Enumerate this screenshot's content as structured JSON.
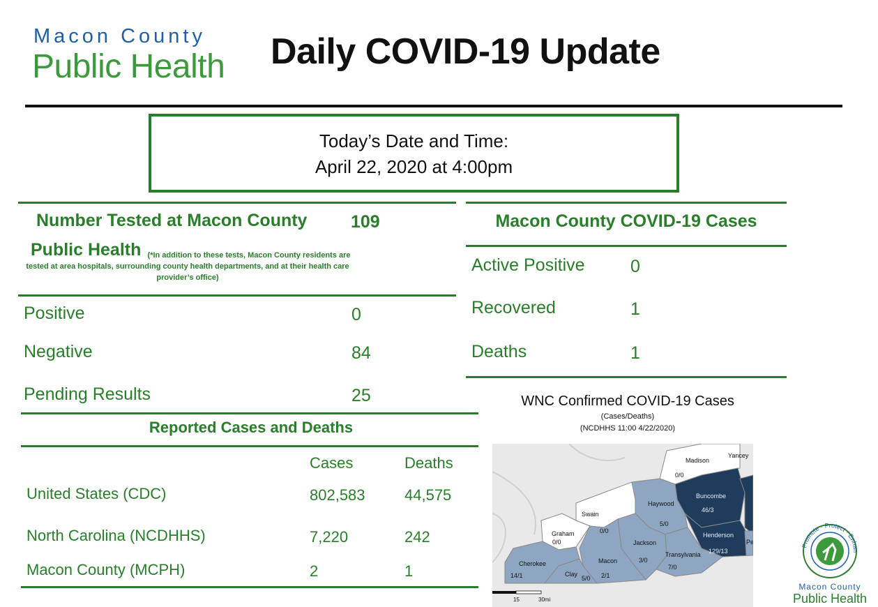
{
  "header": {
    "logo_line1": "Macon County",
    "logo_line2": "Public Health",
    "title": "Daily COVID-19 Update"
  },
  "date_box": {
    "label": "Today’s Date and Time:",
    "value": "April 22, 2020 at 4:00pm"
  },
  "testing": {
    "title_line1": "Number Tested at Macon County",
    "title_line2": "Public Health",
    "note": "(*In addition to these tests, Macon County residents are tested at area hospitals, surrounding county health departments, and at their health care provider’s office)",
    "total": "109",
    "rows": [
      {
        "label": "Positive",
        "value": "0"
      },
      {
        "label": "Negative",
        "value": "84"
      },
      {
        "label": "Pending Results",
        "value": "25"
      }
    ]
  },
  "reported": {
    "title": "Reported Cases and Deaths",
    "col_cases": "Cases",
    "col_deaths": "Deaths",
    "rows": [
      {
        "label": "United States (CDC)",
        "cases": "802,583",
        "deaths": "44,575"
      },
      {
        "label": "North Carolina (NCDHHS)",
        "cases": "7,220",
        "deaths": "242"
      },
      {
        "label": "Macon County (MCPH)",
        "cases": "2",
        "deaths": "1"
      }
    ]
  },
  "county_cases": {
    "title": "Macon County COVID-19 Cases",
    "rows": [
      {
        "label": "Active Positive",
        "value": "0"
      },
      {
        "label": "Recovered",
        "value": "1"
      },
      {
        "label": "Deaths",
        "value": "1"
      }
    ]
  },
  "map": {
    "title": "WNC Confirmed COVID-19 Cases",
    "subtitle1": "(Cases/Deaths)",
    "subtitle2": "(NCDHHS 11:00 4/22/2020)",
    "counties": [
      {
        "name": "Madison",
        "value": "0/0"
      },
      {
        "name": "Yancey",
        "value": ""
      },
      {
        "name": "Buncombe",
        "value": "46/3"
      },
      {
        "name": "Haywood",
        "value": "5/0"
      },
      {
        "name": "Swain",
        "value": "0/0"
      },
      {
        "name": "Graham",
        "value": "0/0"
      },
      {
        "name": "Jackson",
        "value": "3/0"
      },
      {
        "name": "Henderson",
        "value": "129/13"
      },
      {
        "name": "Transylvania",
        "value": "7/0"
      },
      {
        "name": "Macon",
        "value": "2/1"
      },
      {
        "name": "Cherokee",
        "value": "14/1"
      },
      {
        "name": "Clay",
        "value": "5/0"
      },
      {
        "name": "Pe",
        "value": ""
      }
    ],
    "scale_15": "15",
    "scale_30": "30mi",
    "colors": {
      "none": "#ffffff",
      "low": "#8fa6c2",
      "mid": "#4e6f93",
      "high": "#203c5c"
    }
  },
  "badge": {
    "ring_text": "Promote · Protect · Enhance",
    "line1": "Macon County",
    "line2": "Public Health"
  }
}
